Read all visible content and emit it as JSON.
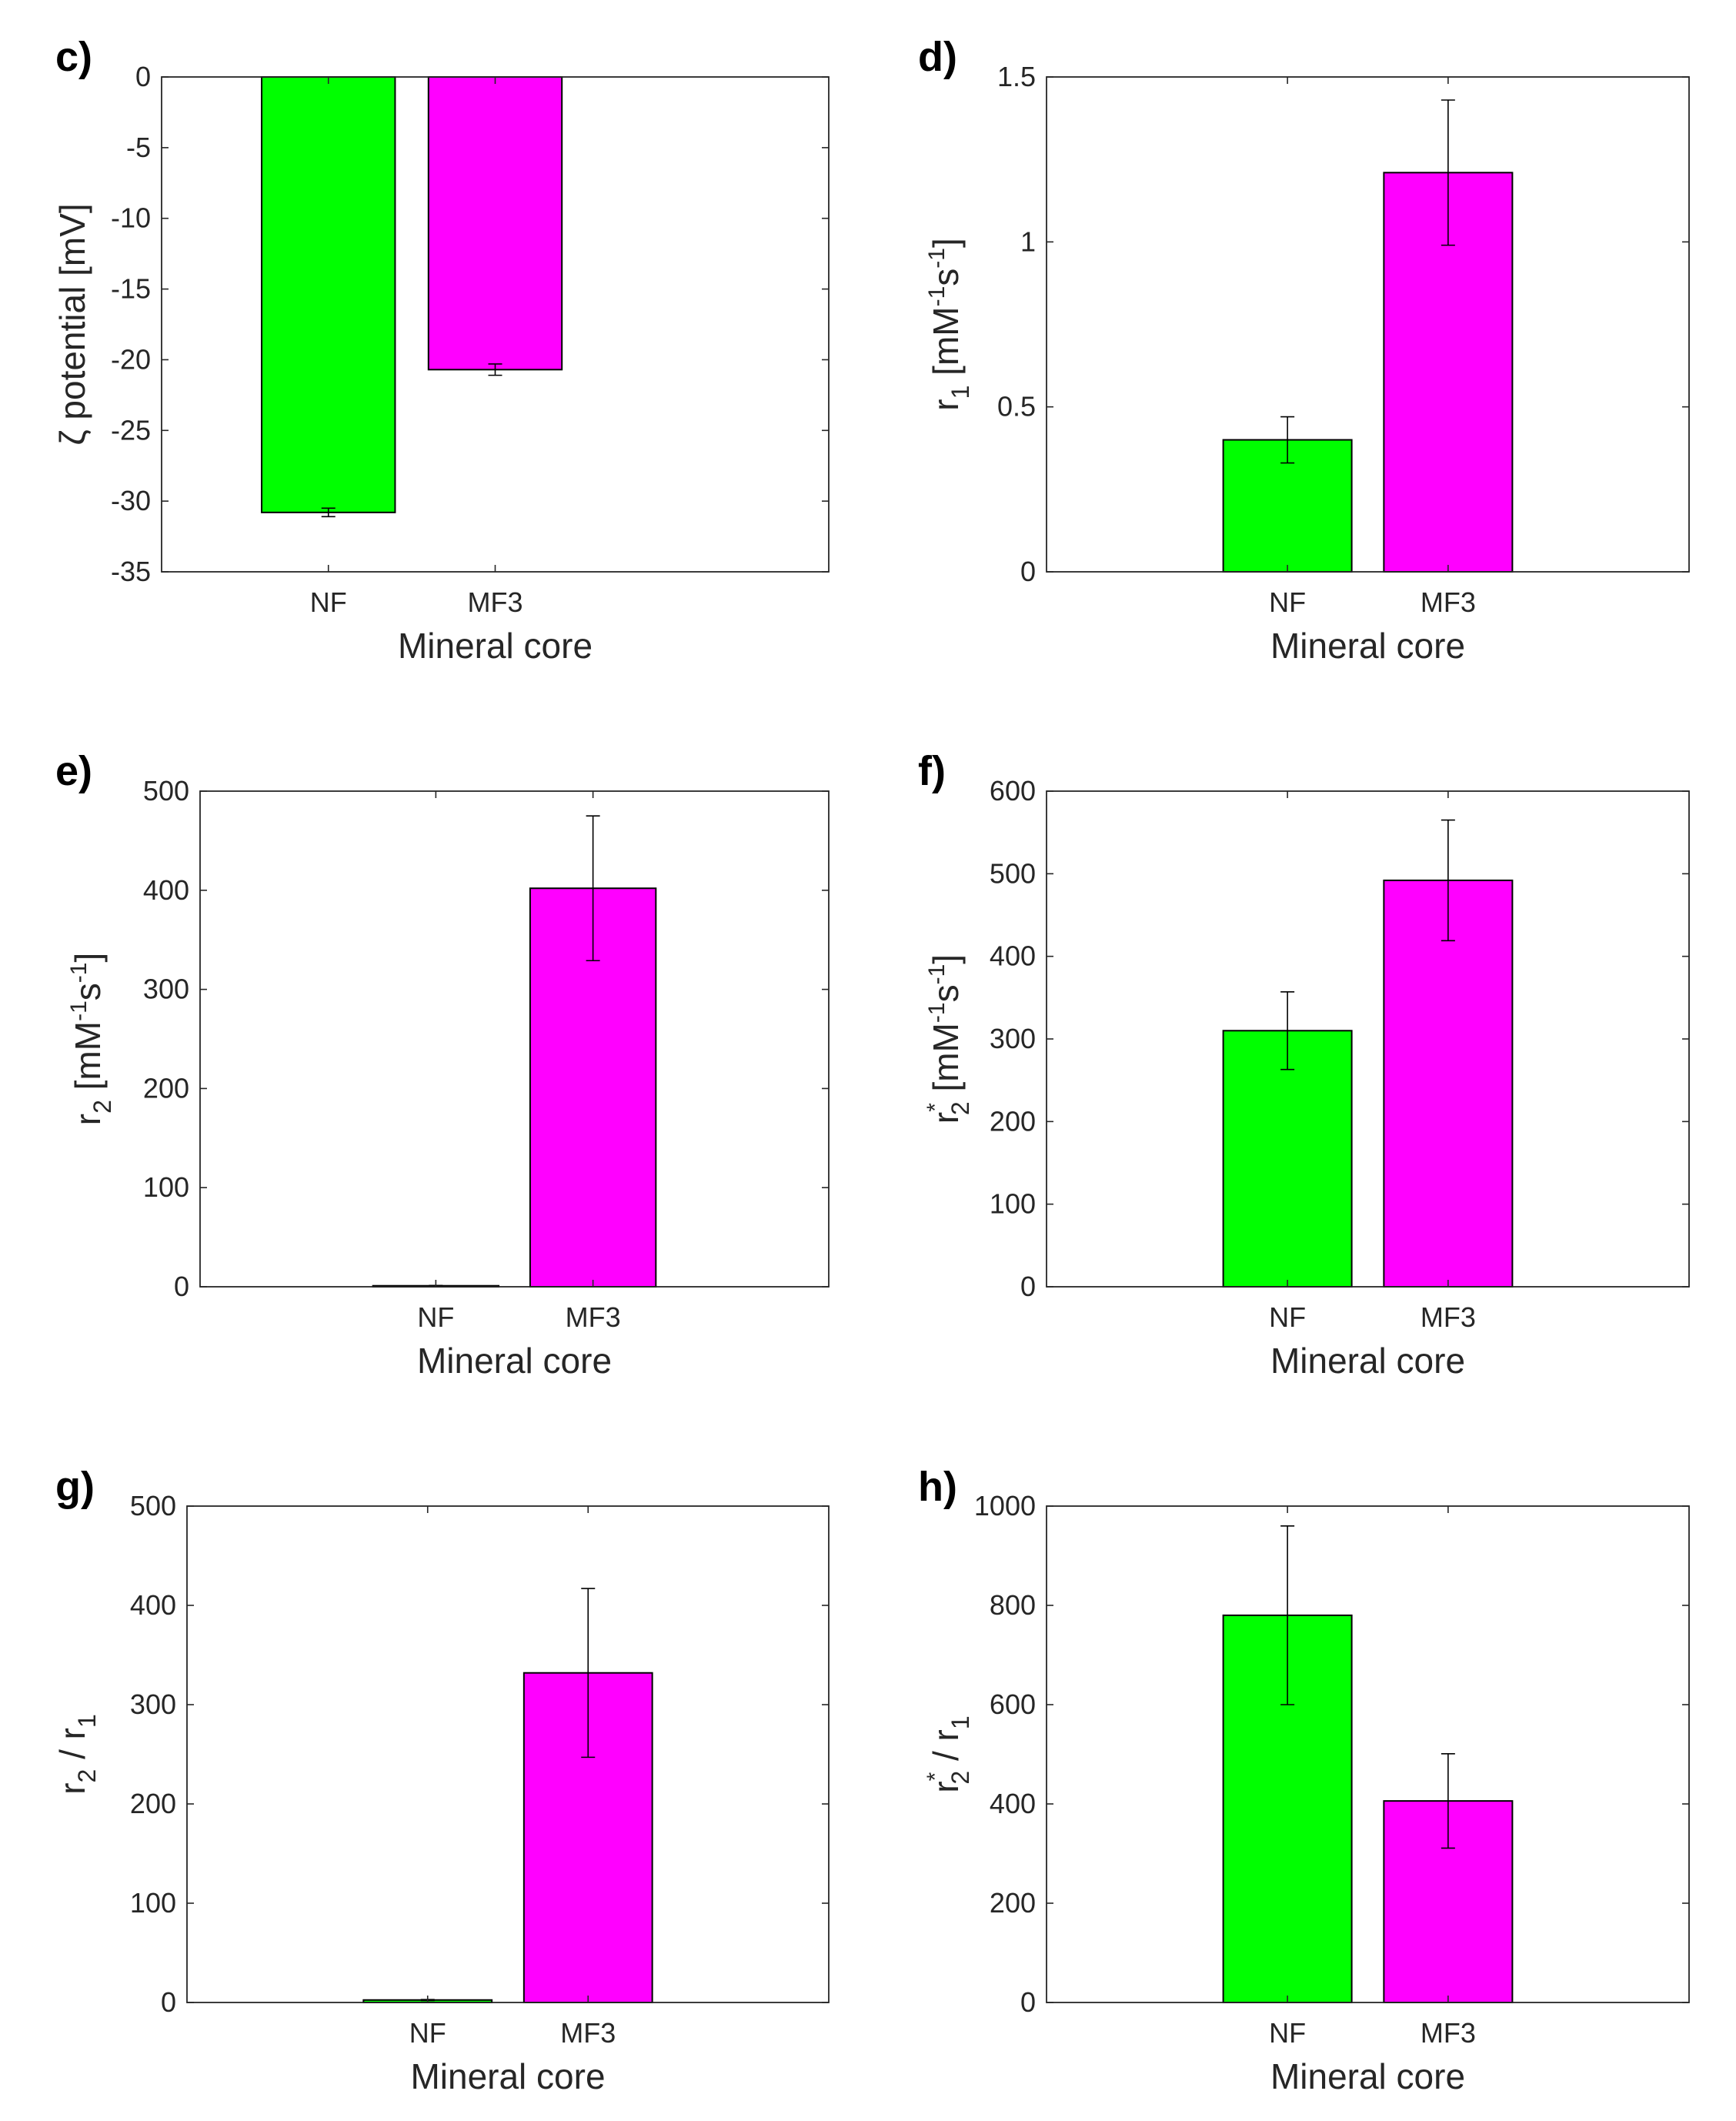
{
  "figure": {
    "colors": {
      "NF": "#00ff00",
      "MF3": "#ff00ff",
      "axis": "#262626",
      "error": "#000000"
    }
  },
  "chart_data": [
    {
      "panel": "c)",
      "type": "bar",
      "categories": [
        "NF",
        "MF3"
      ],
      "values": [
        -30.8,
        -20.7
      ],
      "errors": [
        0.3,
        0.4
      ],
      "ylim": [
        -35,
        0
      ],
      "yticks": [
        -35,
        -30,
        -25,
        -20,
        -15,
        -10,
        -5,
        0
      ],
      "ytick_labels": [
        "-35",
        "-30",
        "-25",
        "-20",
        "-15",
        "-10",
        "-5",
        "0"
      ],
      "xlabel": "Mineral core",
      "ylabel": {
        "base": "ζ potential [mV]"
      },
      "x_offset": -0.5
    },
    {
      "panel": "d)",
      "type": "bar",
      "categories": [
        "NF",
        "MF3"
      ],
      "values": [
        0.4,
        1.21
      ],
      "errors": [
        0.07,
        0.22
      ],
      "ylim": [
        0,
        1.5
      ],
      "yticks": [
        0,
        0.5,
        1,
        1.5
      ],
      "ytick_labels": [
        "0",
        "0.5",
        "1",
        "1.5"
      ],
      "xlabel": "Mineral core",
      "ylabel": {
        "base": "r",
        "sub": "1",
        "rest": " [mM",
        "sup1": "-1",
        "rest2": "s",
        "sup2": "-1",
        "rest3": "]"
      },
      "x_offset": 0
    },
    {
      "panel": "e)",
      "type": "bar",
      "categories": [
        "NF",
        "MF3"
      ],
      "values": [
        1,
        402
      ],
      "errors": [
        0.3,
        73
      ],
      "ylim": [
        0,
        500
      ],
      "yticks": [
        0,
        100,
        200,
        300,
        400,
        500
      ],
      "ytick_labels": [
        "0",
        "100",
        "200",
        "300",
        "400",
        "500"
      ],
      "xlabel": "Mineral core",
      "ylabel": {
        "base": "r",
        "sub": "2",
        "rest": " [mM",
        "sup1": "-1",
        "rest2": "s",
        "sup2": "-1",
        "rest3": "]"
      },
      "x_offset": 0
    },
    {
      "panel": "f)",
      "type": "bar",
      "categories": [
        "NF",
        "MF3"
      ],
      "values": [
        310,
        492
      ],
      "errors": [
        47,
        73
      ],
      "ylim": [
        0,
        600
      ],
      "yticks": [
        0,
        100,
        200,
        300,
        400,
        500,
        600
      ],
      "ytick_labels": [
        "0",
        "100",
        "200",
        "300",
        "400",
        "500",
        "600"
      ],
      "xlabel": "Mineral core",
      "ylabel": {
        "base": "r",
        "sub": "2",
        "star": "*",
        "rest": " [mM",
        "sup1": "-1",
        "rest2": "s",
        "sup2": "-1",
        "rest3": "]"
      },
      "x_offset": 0
    },
    {
      "panel": "g)",
      "type": "bar",
      "categories": [
        "NF",
        "MF3"
      ],
      "values": [
        2.5,
        332
      ],
      "errors": [
        0.5,
        85
      ],
      "ylim": [
        0,
        500
      ],
      "yticks": [
        0,
        100,
        200,
        300,
        400,
        500
      ],
      "ytick_labels": [
        "0",
        "100",
        "200",
        "300",
        "400",
        "500"
      ],
      "xlabel": "Mineral core",
      "ylabel": {
        "base": "r",
        "sub": "2",
        "rest": " / r",
        "sub2": "1"
      },
      "x_offset": 0
    },
    {
      "panel": "h)",
      "type": "bar",
      "categories": [
        "NF",
        "MF3"
      ],
      "values": [
        780,
        406
      ],
      "errors": [
        180,
        95
      ],
      "ylim": [
        0,
        1000
      ],
      "yticks": [
        0,
        200,
        400,
        600,
        800,
        1000
      ],
      "ytick_labels": [
        "0",
        "200",
        "400",
        "600",
        "800",
        "1000"
      ],
      "xlabel": "Mineral core",
      "ylabel": {
        "base": "r",
        "sub": "2",
        "star": "*",
        "rest": " / r",
        "sub2": "1"
      },
      "x_offset": 0
    }
  ]
}
